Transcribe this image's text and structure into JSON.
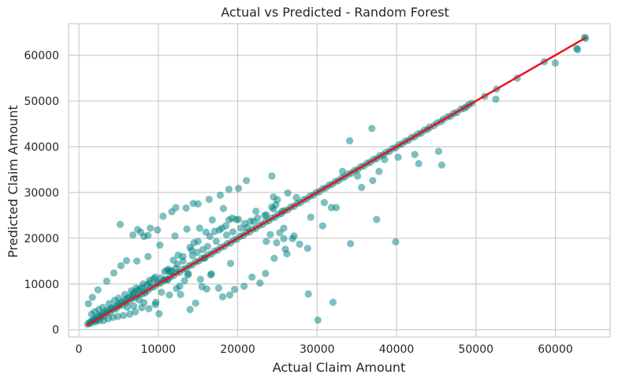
{
  "chart_data": {
    "type": "scatter",
    "title": "Actual vs Predicted - Random Forest",
    "xlabel": "Actual Claim Amount",
    "ylabel": "Predicted Claim Amount",
    "xlim": [
      -1300,
      66900
    ],
    "ylim": [
      -1600,
      66900
    ],
    "xticks": [
      0,
      10000,
      20000,
      30000,
      40000,
      50000,
      60000
    ],
    "yticks": [
      0,
      10000,
      20000,
      30000,
      40000,
      50000,
      60000
    ],
    "grid": true,
    "colors": {
      "points": "#008080",
      "line": "#e8141c",
      "grid": "#cccccc",
      "frame": "#cccccc"
    },
    "reference_line": {
      "x": [
        1000,
        63800
      ],
      "y": [
        1000,
        63800
      ]
    },
    "points": {
      "x": [
        63800,
        63700,
        62700,
        62800,
        60000,
        58600,
        55200,
        52600,
        52500,
        51100,
        49500,
        49100,
        48800,
        48500,
        48100,
        47600,
        47200,
        46800,
        46400,
        45900,
        45600,
        45100,
        44700,
        44200,
        43900,
        43500,
        43100,
        42700,
        42300,
        41900,
        41500,
        41100,
        40700,
        40300,
        39900,
        39500,
        39100,
        38700,
        38300,
        37900,
        37500,
        37100,
        36700,
        36300,
        35900,
        35500,
        35100,
        34700,
        34300,
        33900,
        33500,
        33100,
        32700,
        32300,
        31900,
        31500,
        31100,
        30700,
        30300,
        29900,
        29500,
        29100,
        28700,
        28300,
        27900,
        27500,
        27100,
        26700,
        26300,
        25900,
        25500,
        25100,
        24700,
        24300,
        23900,
        23500,
        23100,
        22700,
        22300,
        21900,
        21500,
        21100,
        20700,
        20300,
        19900,
        19500,
        19100,
        18700,
        18300,
        17900,
        17500,
        17100,
        16700,
        16300,
        15900,
        15500,
        15100,
        14700,
        14300,
        13900,
        13500,
        13100,
        12700,
        12300,
        11900,
        11500,
        11100,
        10700,
        10300,
        9900,
        9500,
        9100,
        8700,
        8300,
        7900,
        7500,
        7100,
        6700,
        6300,
        5900,
        5500,
        5100,
        4700,
        4300,
        3900,
        3500,
        3100,
        2700,
        2300,
        1900,
        1500,
        1100,
        36900,
        34100,
        45700,
        42800,
        37500,
        39900,
        34200,
        30100,
        32000,
        28900,
        30700,
        31800,
        30900,
        33200,
        35100,
        37000,
        37800,
        38500,
        35600,
        32400,
        45300,
        42300,
        40200,
        27100,
        26200,
        25800,
        24100,
        24900,
        25800,
        23600,
        25300,
        24500,
        24300,
        27400,
        26000,
        24600,
        26900,
        28800,
        27800,
        29200,
        24300,
        26300,
        24800,
        25600,
        23600,
        22300,
        22000,
        21200,
        20100,
        19800,
        19300,
        18900,
        18500,
        18000,
        17700,
        17100,
        16500,
        16000,
        15800,
        15200,
        15000,
        14500,
        14200,
        14000,
        13700,
        13100,
        12500,
        12200,
        11900,
        11700,
        11100,
        10800,
        10300,
        9900,
        9400,
        8900,
        8600,
        8000,
        7700,
        7400,
        7000,
        6800,
        6500,
        6200,
        5900,
        5500,
        5200,
        4900,
        4600,
        4200,
        3900,
        3500,
        3200,
        2900,
        2600,
        2300,
        2000,
        1800,
        1500,
        1300,
        21100,
        20100,
        18900,
        17800,
        16400,
        15000,
        14400,
        13500,
        12200,
        11700,
        10600,
        9900,
        9000,
        8700,
        8200,
        7800,
        7400,
        6800,
        6000,
        5200,
        23500,
        22800,
        21800,
        20800,
        19600,
        19000,
        18100,
        17600,
        16700,
        16100,
        15500,
        14700,
        14000,
        13300,
        12800,
        12300,
        11500,
        11200,
        10100,
        9600,
        8800,
        8200,
        7900,
        7100,
        6400,
        5600,
        4900,
        4300,
        3700,
        3100,
        2600,
        2100,
        19100,
        16600,
        15300,
        13800,
        12700,
        11400,
        10400,
        9700,
        8300,
        7600,
        6900,
        6100,
        18200,
        16800,
        13600,
        12100,
        10200,
        8700,
        7300,
        5300,
        4400,
        3500,
        2400,
        1700,
        1200,
        25000,
        24500,
        23400,
        22500,
        21600,
        20900,
        20400,
        19400,
        18600,
        17300,
        16200,
        15600,
        14900,
        14300,
        13100,
        12400,
        11300,
        10800,
        9600,
        8900,
        8100,
        7200,
        6600,
        5800,
        5000,
        4500,
        3800,
        3000,
        2500,
        2000,
        1600
      ],
      "y": [
        63700,
        63900,
        61500,
        61200,
        58300,
        58600,
        55000,
        52600,
        50400,
        51000,
        49500,
        49200,
        48700,
        48400,
        48200,
        47500,
        47300,
        46700,
        46500,
        46000,
        45500,
        45200,
        44600,
        44300,
        43800,
        43600,
        43000,
        42800,
        42200,
        42000,
        41400,
        41200,
        40600,
        40400,
        39800,
        39600,
        39000,
        38800,
        38200,
        38000,
        37400,
        37200,
        36600,
        36400,
        35800,
        35600,
        35000,
        34800,
        34200,
        34000,
        33400,
        33200,
        32600,
        32400,
        31800,
        31600,
        31000,
        30800,
        30200,
        30000,
        29400,
        29200,
        28600,
        28400,
        27800,
        27600,
        27000,
        26800,
        26200,
        26000,
        25400,
        25200,
        24600,
        24400,
        23800,
        23600,
        23000,
        22800,
        22200,
        22000,
        21400,
        21200,
        20600,
        20400,
        19800,
        19600,
        19000,
        18800,
        18200,
        18000,
        17400,
        17200,
        16600,
        16400,
        15800,
        15600,
        15000,
        14800,
        14200,
        14000,
        13400,
        13200,
        12600,
        12400,
        11800,
        11600,
        11000,
        10800,
        10200,
        10000,
        9400,
        9200,
        8600,
        8400,
        7800,
        7600,
        7000,
        6800,
        6200,
        6000,
        5400,
        5200,
        4600,
        4400,
        3800,
        3600,
        3000,
        2800,
        2200,
        2000,
        1400,
        1200,
        44000,
        41300,
        36000,
        36300,
        24100,
        19200,
        18800,
        2100,
        6000,
        7800,
        22700,
        26700,
        27800,
        34600,
        33600,
        32600,
        34600,
        37200,
        31100,
        26700,
        39000,
        38300,
        37700,
        20500,
        16600,
        19900,
        20800,
        19000,
        22200,
        19300,
        21200,
        29000,
        26800,
        28900,
        17600,
        15600,
        19900,
        17800,
        18700,
        24600,
        33600,
        29900,
        27300,
        25900,
        25100,
        25900,
        23700,
        22300,
        24100,
        24100,
        24400,
        24000,
        22700,
        22200,
        21800,
        21500,
        20400,
        21300,
        15600,
        22200,
        19300,
        19000,
        17400,
        18000,
        12000,
        16000,
        16300,
        13400,
        15200,
        12800,
        13000,
        10900,
        11300,
        10400,
        11100,
        10200,
        9800,
        9200,
        9000,
        8600,
        8200,
        7800,
        7200,
        7000,
        6600,
        6200,
        5800,
        5400,
        5000,
        4800,
        4500,
        4200,
        3800,
        3400,
        3100,
        2800,
        2400,
        2100,
        1800,
        1500,
        32600,
        30900,
        30700,
        29400,
        28500,
        27500,
        27600,
        26600,
        26700,
        25800,
        24800,
        21800,
        22200,
        20600,
        20400,
        21300,
        21900,
        20700,
        15100,
        23000,
        12300,
        10200,
        11500,
        9500,
        8800,
        7600,
        7200,
        9100,
        12200,
        8900,
        9400,
        5800,
        4400,
        10700,
        7700,
        9000,
        12700,
        10900,
        3500,
        5500,
        4600,
        5900,
        4800,
        3900,
        3400,
        3100,
        2900,
        2700,
        2400,
        2000,
        2000,
        1700,
        14500,
        12000,
        11000,
        12200,
        9500,
        7600,
        8200,
        6000,
        8000,
        6500,
        5200,
        4900,
        26500,
        24000,
        22000,
        20500,
        18500,
        16000,
        15000,
        14000,
        12400,
        10600,
        8700,
        7100,
        5700,
        28400,
        26400,
        25000,
        24400,
        23700,
        23200,
        22200,
        21400,
        20700,
        19300,
        18200,
        17500,
        16900,
        16200,
        15000,
        14300,
        13200,
        12700,
        11500,
        10800,
        10000,
        9100,
        8500,
        7700,
        6900,
        6400,
        5700,
        4900,
        4400,
        3900,
        3400
      ]
    }
  }
}
